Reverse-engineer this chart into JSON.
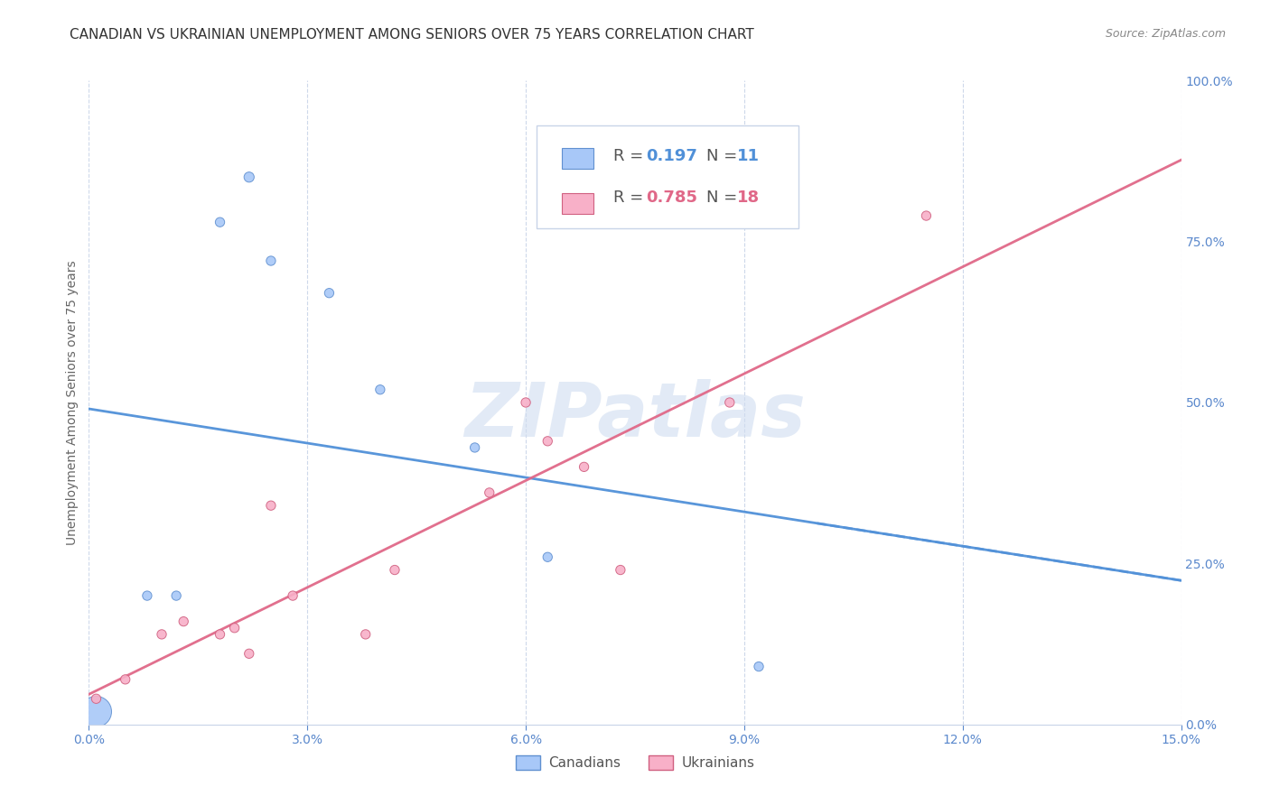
{
  "title": "CANADIAN VS UKRAINIAN UNEMPLOYMENT AMONG SENIORS OVER 75 YEARS CORRELATION CHART",
  "source": "Source: ZipAtlas.com",
  "ylabel": "Unemployment Among Seniors over 75 years",
  "watermark": "ZIPatlas",
  "xmin": 0.0,
  "xmax": 0.15,
  "ymin": 0.0,
  "ymax": 1.0,
  "xticks": [
    0.0,
    0.03,
    0.06,
    0.09,
    0.12,
    0.15
  ],
  "yticks": [
    0.0,
    0.25,
    0.5,
    0.75,
    1.0
  ],
  "xtick_labels": [
    "0.0%",
    "3.0%",
    "6.0%",
    "9.0%",
    "12.0%",
    "15.0%"
  ],
  "ytick_labels": [
    "0.0%",
    "25.0%",
    "50.0%",
    "75.0%",
    "100.0%"
  ],
  "canadians_x": [
    0.001,
    0.008,
    0.012,
    0.018,
    0.022,
    0.025,
    0.033,
    0.04,
    0.053,
    0.063,
    0.092
  ],
  "canadians_y": [
    0.02,
    0.2,
    0.2,
    0.78,
    0.85,
    0.72,
    0.67,
    0.52,
    0.43,
    0.26,
    0.09
  ],
  "canadians_sizes": [
    600,
    55,
    55,
    55,
    65,
    55,
    55,
    55,
    55,
    55,
    55
  ],
  "ukrainians_x": [
    0.001,
    0.005,
    0.01,
    0.013,
    0.018,
    0.02,
    0.022,
    0.025,
    0.028,
    0.038,
    0.042,
    0.055,
    0.06,
    0.063,
    0.068,
    0.073,
    0.088,
    0.115
  ],
  "ukrainians_y": [
    0.04,
    0.07,
    0.14,
    0.16,
    0.14,
    0.15,
    0.11,
    0.34,
    0.2,
    0.14,
    0.24,
    0.36,
    0.5,
    0.44,
    0.4,
    0.24,
    0.5,
    0.79
  ],
  "ukrainians_sizes": [
    55,
    55,
    55,
    55,
    55,
    55,
    55,
    55,
    55,
    55,
    55,
    55,
    55,
    55,
    55,
    55,
    55,
    55
  ],
  "canadian_color": "#a8c8f8",
  "ukrainian_color": "#f8b0c8",
  "canadian_edge_color": "#6090d0",
  "ukrainian_edge_color": "#d06080",
  "canadian_trend_color": "#5090d8",
  "ukrainian_trend_color": "#e06888",
  "title_fontsize": 11,
  "label_fontsize": 10,
  "tick_fontsize": 10,
  "legend_fontsize": 13,
  "watermark_fontsize": 60,
  "watermark_color": "#d0ddf0",
  "background_color": "#ffffff",
  "grid_color": "#c8d4e8",
  "tick_color": "#5a88cc"
}
